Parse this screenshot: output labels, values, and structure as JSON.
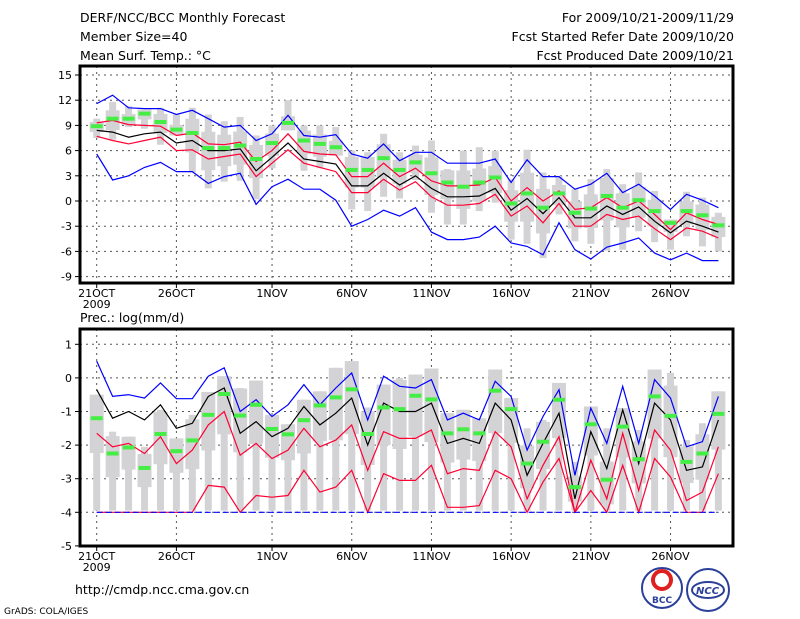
{
  "header": {
    "title": "DERF/NCC/BCC Monthly Forecast",
    "member_size": "Member Size=40",
    "variable": "Mean Surf. Temp.: °C",
    "period": "For 2009/10/21-2009/11/29",
    "started": "Fcst Started Refer Date 2009/10/20",
    "produced": "Fcst Produced Date 2009/10/21"
  },
  "footer": {
    "url": "http://cmdp.ncc.cma.gov.cn",
    "credit": "GrADS: COLA/IGES",
    "logo_bcc": "BCC",
    "logo_ncc": "NCC"
  },
  "colors": {
    "mean": "#000000",
    "spread": "#ff0033",
    "extreme": "#0000ff",
    "marker": "#44ee44",
    "bar": "#d3d3d6"
  },
  "chart_data": [
    {
      "type": "line",
      "title": "Mean Surf. Temp.: °C",
      "ylim": [
        -9,
        15
      ],
      "yticks": [
        "15",
        "12",
        "9",
        "6",
        "3",
        "0",
        "-3",
        "-6",
        "-9"
      ],
      "ytick_values": [
        15,
        12,
        9,
        6,
        3,
        0,
        -3,
        -6,
        -9
      ],
      "xticks": [
        {
          "day": 0,
          "label": "21OCT",
          "sub": "2009"
        },
        {
          "day": 5,
          "label": "26OCT"
        },
        {
          "day": 11,
          "label": "1NOV"
        },
        {
          "day": 16,
          "label": "6NOV"
        },
        {
          "day": 21,
          "label": "11NOV"
        },
        {
          "day": 26,
          "label": "16NOV"
        },
        {
          "day": 31,
          "label": "21NOV"
        },
        {
          "day": 36,
          "label": "26NOV"
        }
      ],
      "grid": true,
      "series": [
        {
          "name": "ensemble-mean",
          "color": "mean",
          "values": [
            8.4,
            8.2,
            7.6,
            8.0,
            8.2,
            6.9,
            7.2,
            6.0,
            6.0,
            6.2,
            3.6,
            5.2,
            6.9,
            5.0,
            4.7,
            4.4,
            1.8,
            1.8,
            3.3,
            1.9,
            3.0,
            1.5,
            0.5,
            0.5,
            0.6,
            1.5,
            -1.1,
            0.3,
            -1.5,
            0.4,
            -2.0,
            -2.0,
            -0.6,
            -1.6,
            -0.7,
            -2.4,
            -3.8,
            -2.4,
            -3.0,
            -3.7
          ]
        },
        {
          "name": "spread-upper",
          "color": "spread",
          "values": [
            9.3,
            9.6,
            9.1,
            9.0,
            8.9,
            7.8,
            8.1,
            6.8,
            6.7,
            7.0,
            4.7,
            6.0,
            8.0,
            5.9,
            5.6,
            5.5,
            2.9,
            2.9,
            4.5,
            2.9,
            3.9,
            2.4,
            1.8,
            1.8,
            1.9,
            2.8,
            0.0,
            1.6,
            0.0,
            1.2,
            -1.0,
            -0.8,
            0.4,
            -0.8,
            0.0,
            -1.6,
            -3.4,
            -1.4,
            -2.2,
            -2.8
          ]
        },
        {
          "name": "spread-lower",
          "color": "spread",
          "values": [
            7.7,
            7.2,
            6.8,
            7.2,
            7.6,
            6.0,
            6.1,
            5.0,
            5.3,
            5.6,
            2.9,
            4.5,
            6.1,
            4.5,
            4.0,
            3.5,
            1.0,
            1.0,
            2.6,
            1.3,
            2.3,
            0.5,
            -0.5,
            -0.5,
            -0.3,
            0.8,
            -1.8,
            -0.6,
            -2.6,
            -0.3,
            -3.0,
            -3.0,
            -1.6,
            -2.2,
            -1.8,
            -3.3,
            -4.6,
            -3.2,
            -3.6,
            -4.4
          ]
        },
        {
          "name": "max",
          "color": "extreme",
          "values": [
            11.6,
            12.6,
            11.1,
            11.0,
            11.0,
            10.3,
            10.8,
            9.8,
            8.8,
            9.0,
            7.2,
            8.0,
            10.2,
            7.8,
            7.6,
            7.9,
            5.6,
            5.1,
            6.8,
            4.8,
            5.8,
            5.8,
            4.5,
            4.5,
            4.5,
            5.0,
            2.2,
            4.9,
            2.9,
            2.9,
            1.4,
            2.0,
            3.3,
            1.0,
            2.0,
            0.6,
            -1.0,
            0.8,
            0.1,
            -0.8
          ]
        },
        {
          "name": "min",
          "color": "extreme",
          "values": [
            5.6,
            2.5,
            3.0,
            4.0,
            4.6,
            3.5,
            3.5,
            2.1,
            2.9,
            3.3,
            -0.4,
            1.7,
            2.6,
            1.4,
            1.4,
            0.1,
            -3.0,
            -2.2,
            -1.1,
            -1.8,
            -0.8,
            -3.7,
            -4.6,
            -4.6,
            -4.3,
            -3.0,
            -5.0,
            -5.4,
            -6.4,
            -2.6,
            -5.8,
            -6.9,
            -5.5,
            -5.0,
            -4.4,
            -6.2,
            -7.0,
            -6.2,
            -7.1,
            -7.1
          ]
        }
      ],
      "markers": [
        8.9,
        9.8,
        9.8,
        10.4,
        9.4,
        8.5,
        8.1,
        6.3,
        6.3,
        6.6,
        5.0,
        6.9,
        9.3,
        7.2,
        6.8,
        6.4,
        3.7,
        3.7,
        5.1,
        3.7,
        4.6,
        3.3,
        2.2,
        1.7,
        2.2,
        2.8,
        -0.3,
        0.9,
        -0.8,
        0.9,
        -1.4,
        -0.9,
        0.6,
        -0.8,
        0.1,
        -1.2,
        -2.6,
        -1.2,
        -1.7,
        -2.9
      ],
      "bar_high": [
        9.8,
        11.8,
        11.3,
        10.9,
        11.1,
        10.3,
        11.1,
        10.3,
        9.5,
        10.0,
        7.8,
        9.0,
        12.0,
        9.0,
        9.0,
        8.8,
        6.0,
        5.8,
        8.0,
        5.8,
        6.6,
        7.2,
        3.8,
        6.0,
        6.4,
        6.0,
        2.6,
        6.1,
        3.4,
        3.0,
        1.4,
        2.6,
        3.8,
        2.0,
        3.4,
        1.2,
        -2.2,
        1.1,
        0.4,
        -1.4
      ],
      "bar_low": [
        7.5,
        7.3,
        8.8,
        8.6,
        6.7,
        7.8,
        3.4,
        1.5,
        2.3,
        2.4,
        0.2,
        3.9,
        8.4,
        3.6,
        3.9,
        5.4,
        -1.0,
        -1.2,
        0.5,
        0.3,
        2.5,
        -1.4,
        -2.8,
        -2.8,
        -1.2,
        -0.2,
        -4.6,
        -5.1,
        -6.8,
        -1.6,
        -4.8,
        -5.1,
        -5.9,
        -5.8,
        -3.6,
        -4.9,
        -5.8,
        -4.2,
        -5.4,
        -6.0
      ]
    },
    {
      "type": "line",
      "title": "Prec.: log(mm/d)",
      "ylim": [
        -5,
        1.5
      ],
      "yticks": [
        "1",
        "0",
        "-1",
        "-2",
        "-3",
        "-4",
        "-5"
      ],
      "ytick_values": [
        1,
        0,
        -1,
        -2,
        -3,
        -4,
        -5
      ],
      "xticks": [
        {
          "day": 0,
          "label": "21OCT",
          "sub": "2009"
        },
        {
          "day": 5,
          "label": "26OCT"
        },
        {
          "day": 11,
          "label": "1NOV"
        },
        {
          "day": 16,
          "label": "6NOV"
        },
        {
          "day": 21,
          "label": "11NOV"
        },
        {
          "day": 26,
          "label": "16NOV"
        },
        {
          "day": 31,
          "label": "21NOV"
        },
        {
          "day": 36,
          "label": "26NOV"
        }
      ],
      "grid": true,
      "series": [
        {
          "name": "ensemble-mean",
          "color": "mean",
          "values": [
            -0.35,
            -1.2,
            -1.0,
            -1.25,
            -0.8,
            -1.5,
            -1.35,
            -0.55,
            -0.3,
            -1.65,
            -1.3,
            -1.75,
            -1.5,
            -0.85,
            -1.4,
            -1.05,
            -0.6,
            -2.0,
            -0.75,
            -1.0,
            -1.0,
            -0.75,
            -1.95,
            -1.8,
            -1.95,
            -0.75,
            -1.25,
            -2.9,
            -1.95,
            -1.05,
            -3.6,
            -1.6,
            -2.7,
            -0.95,
            -2.55,
            -0.75,
            -1.25,
            -2.75,
            -2.65,
            -1.25
          ]
        },
        {
          "name": "spread-upper",
          "color": "spread",
          "values": [
            -1.65,
            -2.05,
            -1.95,
            -2.25,
            -1.75,
            -2.55,
            -2.15,
            -1.4,
            -1.0,
            -2.3,
            -1.95,
            -2.4,
            -2.15,
            -1.5,
            -2.05,
            -1.85,
            -1.4,
            -2.75,
            -1.6,
            -1.8,
            -1.8,
            -1.55,
            -2.85,
            -2.7,
            -2.75,
            -1.6,
            -2.05,
            -3.6,
            -2.6,
            -1.75,
            -4.0,
            -2.45,
            -3.6,
            -1.65,
            -3.35,
            -1.55,
            -2.15,
            -3.65,
            -3.4,
            -2.05
          ]
        },
        {
          "name": "spread-lower",
          "color": "spread",
          "values": [
            -4,
            -4,
            -4,
            -4,
            -4,
            -4,
            -4,
            -3.2,
            -3.25,
            -4.0,
            -3.5,
            -3.55,
            -3.5,
            -2.75,
            -3.4,
            -3.25,
            -2.75,
            -4.0,
            -2.85,
            -3.05,
            -3.05,
            -2.6,
            -3.85,
            -3.85,
            -3.8,
            -2.75,
            -3.0,
            -4.0,
            -3.1,
            -2.4,
            -4.0,
            -3.35,
            -4.0,
            -2.6,
            -4.0,
            -2.4,
            -2.95,
            -4.0,
            -4.0,
            -2.85
          ]
        },
        {
          "name": "max",
          "color": "extreme",
          "values": [
            0.5,
            -0.55,
            -0.5,
            -0.6,
            -0.15,
            -0.62,
            -0.62,
            0.05,
            0.3,
            -1.0,
            -0.65,
            -1.15,
            -0.8,
            -0.2,
            -0.8,
            -0.3,
            0.15,
            -1.25,
            0.05,
            -0.25,
            -0.3,
            -0.05,
            -1.25,
            -1.05,
            -1.25,
            -0.1,
            -0.55,
            -2.15,
            -1.15,
            -0.35,
            -2.9,
            -0.9,
            -1.95,
            -0.25,
            -1.95,
            -0.05,
            -0.6,
            -2.05,
            -1.9,
            -0.55
          ]
        },
        {
          "name": "min",
          "color": "extreme",
          "dashed": true,
          "values": [
            -4,
            -4,
            -4,
            -4,
            -4,
            -4,
            -4,
            -4,
            -4,
            -4,
            -4,
            -4,
            -4,
            -4,
            -4,
            -4,
            -4,
            -4,
            -4,
            -4,
            -4,
            -4,
            -4,
            -4,
            -4,
            -4,
            -4,
            -4,
            -4,
            -4,
            -4,
            -4,
            -4,
            -4,
            -4,
            -4,
            -4,
            -4,
            -4,
            -4
          ]
        }
      ],
      "markers": [
        -1.2,
        -2.25,
        -2.07,
        -2.68,
        -1.67,
        -2.18,
        -1.86,
        -1.1,
        -0.48,
        -1.12,
        -0.8,
        -1.52,
        -1.68,
        -1.26,
        -0.82,
        -0.58,
        -0.34,
        -1.67,
        -0.88,
        -0.93,
        -0.53,
        -0.64,
        -1.65,
        -1.53,
        -1.65,
        -0.38,
        -0.93,
        -2.55,
        -1.9,
        -0.65,
        -3.25,
        -1.38,
        -3.03,
        -1.45,
        -2.42,
        -0.55,
        -1.13,
        -2.5,
        -2.25,
        -1.07
      ],
      "bar_high": [
        -0.5,
        -1.6,
        -1.75,
        -2.05,
        -0.95,
        -1.8,
        -1.1,
        -0.42,
        0.05,
        -0.3,
        -0.08,
        -1.1,
        -1.38,
        -0.65,
        -0.4,
        0.3,
        0.5,
        -0.88,
        -0.2,
        0.0,
        0.1,
        0.28,
        -1.05,
        -0.95,
        -1.2,
        0.25,
        -0.6,
        -1.5,
        -1.25,
        -0.15,
        -2.5,
        -0.85,
        -1.5,
        -0.9,
        -1.55,
        0.25,
        0.15,
        -1.85,
        -1.35,
        -0.4
      ],
      "bar_low": [
        -3.95,
        -3.95,
        -3.95,
        -3.95,
        -3.95,
        -3.95,
        -3.95,
        -3.95,
        -3.95,
        -3.95,
        -3.95,
        -3.95,
        -3.95,
        -3.95,
        -3.95,
        -3.95,
        -3.95,
        -3.95,
        -3.95,
        -3.95,
        -3.95,
        -3.95,
        -3.95,
        -3.95,
        -3.95,
        -3.95,
        -3.95,
        -3.95,
        -3.95,
        -3.95,
        -3.95,
        -3.95,
        -3.95,
        -3.95,
        -3.95,
        -3.95,
        -3.95,
        -3.95,
        -3.95,
        -3.95
      ]
    }
  ]
}
